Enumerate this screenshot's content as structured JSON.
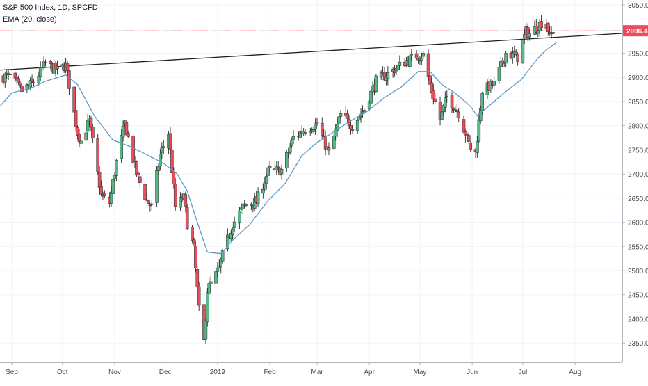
{
  "legend": {
    "title": "S&P 500 Index, 1D, SPCFD",
    "indicator": "EMA (20, close)"
  },
  "price_tag": "2996.4",
  "colors": {
    "up": "#53b987",
    "down": "#eb4d5c",
    "ema": "#5f99c4",
    "trendline": "#1e1e1e",
    "price_line": "#eb4d5c",
    "grid": "#f0f3fa",
    "axis_text": "#4a4a4a"
  },
  "chart_data": {
    "type": "candlestick",
    "title": "S&P 500 Index, 1D, SPCFD",
    "ylim": [
      2310,
      3060
    ],
    "yticks": [
      2350,
      2400,
      2450,
      2500,
      2550,
      2600,
      2650,
      2700,
      2750,
      2800,
      2850,
      2900,
      2950,
      3000,
      3050
    ],
    "ytick_labels": [
      "2350.0",
      "2400.0",
      "2450.0",
      "2500.0",
      "2550.0",
      "2600.0",
      "2650.0",
      "2700.0",
      "2750.0",
      "2800.0",
      "2850.0",
      "2900.0",
      "2950.0",
      "3000.0",
      "3050.0"
    ],
    "xticks": [
      {
        "label": "Sep",
        "date": "2018-09-01"
      },
      {
        "label": "Oct",
        "date": "2018-10-01"
      },
      {
        "label": "Nov",
        "date": "2018-11-01"
      },
      {
        "label": "Dec",
        "date": "2018-12-01"
      },
      {
        "label": "2019",
        "date": "2019-01-01"
      },
      {
        "label": "Feb",
        "date": "2019-02-01"
      },
      {
        "label": "Mar",
        "date": "2019-03-01"
      },
      {
        "label": "Apr",
        "date": "2019-04-01"
      },
      {
        "label": "May",
        "date": "2019-05-01"
      },
      {
        "label": "Jun",
        "date": "2019-06-01"
      },
      {
        "label": "Jul",
        "date": "2019-07-01"
      },
      {
        "label": "Aug",
        "date": "2019-08-01"
      }
    ],
    "xlim": [
      "2018-08-25",
      "2019-08-29"
    ],
    "grid": true,
    "last_price": 2996.4,
    "trendline": {
      "start": [
        "2018-08-25",
        2915
      ],
      "end": [
        "2019-08-29",
        2991
      ]
    },
    "ema_anchors": [
      [
        "2018-08-25",
        2840
      ],
      [
        "2018-09-01",
        2868
      ],
      [
        "2018-09-12",
        2877
      ],
      [
        "2018-09-21",
        2892
      ],
      [
        "2018-10-03",
        2905
      ],
      [
        "2018-10-10",
        2885
      ],
      [
        "2018-10-20",
        2820
      ],
      [
        "2018-10-31",
        2770
      ],
      [
        "2018-11-10",
        2757
      ],
      [
        "2018-11-20",
        2740
      ],
      [
        "2018-11-30",
        2722
      ],
      [
        "2018-12-08",
        2700
      ],
      [
        "2018-12-14",
        2665
      ],
      [
        "2018-12-20",
        2600
      ],
      [
        "2018-12-26",
        2538
      ],
      [
        "2019-01-03",
        2535
      ],
      [
        "2019-01-10",
        2563
      ],
      [
        "2019-01-20",
        2595
      ],
      [
        "2019-01-31",
        2645
      ],
      [
        "2019-02-10",
        2680
      ],
      [
        "2019-02-20",
        2738
      ],
      [
        "2019-03-01",
        2765
      ],
      [
        "2019-03-10",
        2785
      ],
      [
        "2019-03-20",
        2808
      ],
      [
        "2019-03-31",
        2830
      ],
      [
        "2019-04-10",
        2858
      ],
      [
        "2019-04-20",
        2880
      ],
      [
        "2019-04-30",
        2912
      ],
      [
        "2019-05-07",
        2912
      ],
      [
        "2019-05-14",
        2885
      ],
      [
        "2019-05-22",
        2867
      ],
      [
        "2019-05-31",
        2840
      ],
      [
        "2019-06-04",
        2820
      ],
      [
        "2019-06-10",
        2838
      ],
      [
        "2019-06-20",
        2868
      ],
      [
        "2019-06-30",
        2895
      ],
      [
        "2019-07-10",
        2940
      ],
      [
        "2019-07-15",
        2957
      ],
      [
        "2019-07-21",
        2972
      ]
    ],
    "candle_anchors": [
      [
        "2018-08-25",
        2900
      ],
      [
        "2018-08-31",
        2902
      ],
      [
        "2018-09-07",
        2872
      ],
      [
        "2018-09-14",
        2890
      ],
      [
        "2018-09-21",
        2928
      ],
      [
        "2018-09-28",
        2914
      ],
      [
        "2018-10-03",
        2925
      ],
      [
        "2018-10-05",
        2885
      ],
      [
        "2018-10-10",
        2785
      ],
      [
        "2018-10-12",
        2768
      ],
      [
        "2018-10-17",
        2810
      ],
      [
        "2018-10-24",
        2655
      ],
      [
        "2018-10-29",
        2640
      ],
      [
        "2018-11-02",
        2725
      ],
      [
        "2018-11-07",
        2805
      ],
      [
        "2018-11-14",
        2700
      ],
      [
        "2018-11-20",
        2645
      ],
      [
        "2018-11-23",
        2632
      ],
      [
        "2018-11-28",
        2740
      ],
      [
        "2018-12-03",
        2785
      ],
      [
        "2018-12-07",
        2632
      ],
      [
        "2018-12-12",
        2652
      ],
      [
        "2018-12-14",
        2598
      ],
      [
        "2018-12-18",
        2545
      ],
      [
        "2018-12-21",
        2418
      ],
      [
        "2018-12-24",
        2352
      ],
      [
        "2018-12-26",
        2460
      ],
      [
        "2019-01-02",
        2505
      ],
      [
        "2019-01-04",
        2532
      ],
      [
        "2019-01-10",
        2596
      ],
      [
        "2019-01-17",
        2635
      ],
      [
        "2019-01-24",
        2643
      ],
      [
        "2019-01-31",
        2705
      ],
      [
        "2019-02-08",
        2708
      ],
      [
        "2019-02-15",
        2775
      ],
      [
        "2019-02-22",
        2793
      ],
      [
        "2019-03-01",
        2803
      ],
      [
        "2019-03-08",
        2743
      ],
      [
        "2019-03-15",
        2822
      ],
      [
        "2019-03-22",
        2800
      ],
      [
        "2019-03-29",
        2834
      ],
      [
        "2019-04-05",
        2893
      ],
      [
        "2019-04-12",
        2907
      ],
      [
        "2019-04-23",
        2934
      ],
      [
        "2019-04-30",
        2946
      ],
      [
        "2019-05-03",
        2946
      ],
      [
        "2019-05-07",
        2884
      ],
      [
        "2019-05-13",
        2812
      ],
      [
        "2019-05-17",
        2860
      ],
      [
        "2019-05-24",
        2826
      ],
      [
        "2019-05-31",
        2752
      ],
      [
        "2019-06-03",
        2744
      ],
      [
        "2019-06-07",
        2873
      ],
      [
        "2019-06-14",
        2886
      ],
      [
        "2019-06-21",
        2950
      ],
      [
        "2019-06-28",
        2942
      ],
      [
        "2019-07-03",
        2995
      ],
      [
        "2019-07-05",
        2990
      ],
      [
        "2019-07-12",
        3013
      ],
      [
        "2019-07-15",
        3014
      ],
      [
        "2019-07-17",
        2984
      ],
      [
        "2019-07-19",
        2996
      ]
    ]
  }
}
